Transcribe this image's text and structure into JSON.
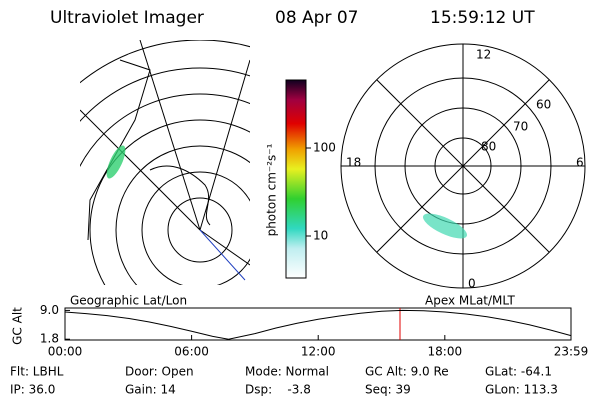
{
  "header": {
    "title": "Ultraviolet Imager",
    "date": "08 Apr 07",
    "time": "15:59:12 UT"
  },
  "colorbar": {
    "label": "photon cm⁻²s⁻¹",
    "ticks": [
      "100",
      "10"
    ]
  },
  "polar": {
    "labels": [
      "12",
      "18",
      "6",
      "0",
      "60",
      "70",
      "80"
    ]
  },
  "map_labels": [
    "Geographic Lat/Lon",
    "Apex MLat/MLT"
  ],
  "chart_data": {
    "type": "line",
    "ylabel": "GC Alt",
    "x": [
      0,
      1,
      2,
      3,
      4,
      5,
      6,
      7,
      7.75,
      9,
      10,
      11,
      12,
      13,
      14,
      15,
      16,
      17,
      18,
      19,
      20,
      21,
      22,
      23,
      23.98
    ],
    "values": [
      8.6,
      8.2,
      7.7,
      7.0,
      6.1,
      5.0,
      3.8,
      2.5,
      1.8,
      3.2,
      4.6,
      5.8,
      6.8,
      7.6,
      8.3,
      8.8,
      9.0,
      8.9,
      8.6,
      8.1,
      7.4,
      6.5,
      5.4,
      4.1,
      2.7
    ],
    "color": "#000000",
    "xlim": [
      0,
      23.98
    ],
    "xticks": [
      {
        "value": 0,
        "label": "00:00"
      },
      {
        "value": 6,
        "label": "06:00"
      },
      {
        "value": 12,
        "label": "12:00"
      },
      {
        "value": 18,
        "label": "18:00"
      },
      {
        "value": 23.98,
        "label": "23:59"
      }
    ],
    "ylim": [
      1.6,
      9.6
    ],
    "yticks": [
      {
        "value": 9.0,
        "label": "9.0"
      },
      {
        "value": 1.8,
        "label": "1.8"
      }
    ]
  },
  "info": [
    [
      "Flt: LBHL",
      "Door: Open",
      "Mode: Normal",
      "GC Alt: 9.0 Re",
      "GLat: -64.1"
    ],
    [
      "IP: 36.0",
      "Gain: 14",
      "Dsp:    -3.8",
      "Seq: 39",
      "GLon: 113.3"
    ]
  ]
}
